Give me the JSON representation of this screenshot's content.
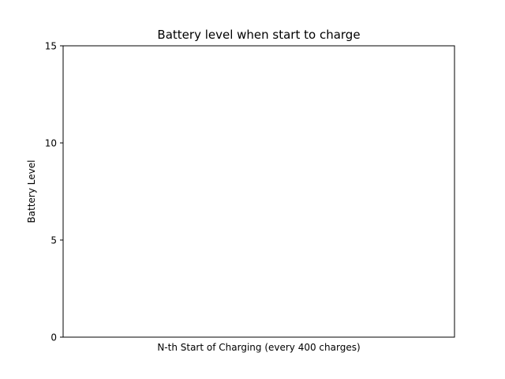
{
  "chart_data": {
    "type": "bar",
    "title": "Battery level when start to charge",
    "xlabel": "N-th Start of Charging (every 400 charges)",
    "ylabel": "Battery Level",
    "ylim": [
      0,
      15
    ],
    "y_ticks": [
      "0",
      "5",
      "10",
      "15"
    ],
    "categories": [],
    "values": [],
    "grid": false,
    "legend": "none"
  }
}
